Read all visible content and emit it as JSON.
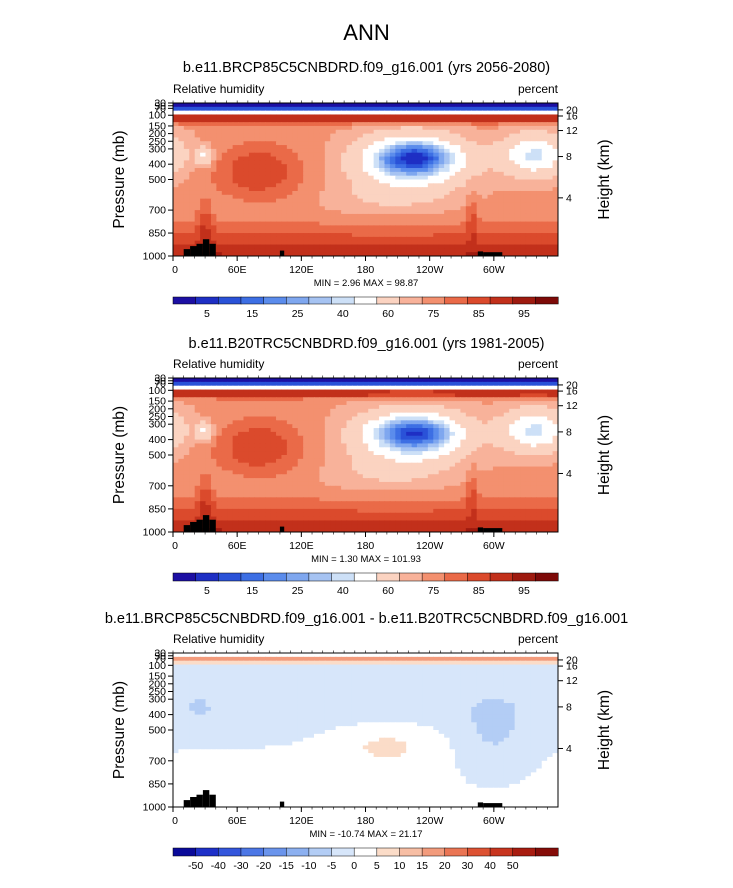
{
  "figure": {
    "title": "ANN",
    "pressure_ticks": [
      "30",
      "50",
      "70",
      "100",
      "150",
      "200",
      "250",
      "300",
      "400",
      "500",
      "700",
      "850",
      "1000"
    ],
    "height_ticks": [
      "20",
      "16",
      "12",
      "8",
      "4"
    ],
    "lon_ticks": [
      "0",
      "60E",
      "120E",
      "180",
      "120W",
      "60W"
    ]
  },
  "colors": {
    "abs_scale": [
      "#1c0fa3",
      "#1e2fc4",
      "#2a52d8",
      "#3d6fe4",
      "#5b8cec",
      "#7fa7ef",
      "#a6c3f2",
      "#cde0f7",
      "#ffffff",
      "#fbd3c1",
      "#f8b29a",
      "#f3906f",
      "#ea6a48",
      "#db4a2c",
      "#c2301b",
      "#9e1a0f",
      "#7d0a08"
    ],
    "diff_scale": [
      "#0a0a9a",
      "#1e30c8",
      "#3456dc",
      "#4c77e6",
      "#6a94ec",
      "#8cb0f0",
      "#b3cdf5",
      "#d7e6fa",
      "#ffffff",
      "#fbdcc8",
      "#f7bea4",
      "#f29b7c",
      "#ea7554",
      "#dd5233",
      "#c8351f",
      "#a81c10",
      "#850c08"
    ]
  },
  "chart_data": [
    {
      "type": "heatmap",
      "title": "b.e11.BRCP85C5CNBDRD.f09_g16.001 (yrs 2056-2080)",
      "left_label": "Relative humidity",
      "right_label": "percent",
      "xlabel": "",
      "ylabel": "Pressure (mb)",
      "ylabel_right": "Height (km)",
      "x_range": [
        0,
        360
      ],
      "y_range": [
        1000,
        30
      ],
      "stats": "MIN =   2.96  MAX =  98.87",
      "min": 2.96,
      "max": 98.87,
      "colorbar_labels": [
        "5",
        "15",
        "25",
        "40",
        "60",
        "75",
        "85",
        "95"
      ],
      "colorbar_levels": [
        5,
        10,
        15,
        20,
        25,
        30,
        35,
        40,
        50,
        60,
        65,
        70,
        75,
        80,
        85,
        90,
        95
      ]
    },
    {
      "type": "heatmap",
      "title": "b.e11.B20TRC5CNBDRD.f09_g16.001 (yrs 1981-2005)",
      "left_label": "Relative humidity",
      "right_label": "percent",
      "xlabel": "",
      "ylabel": "Pressure (mb)",
      "ylabel_right": "Height (km)",
      "x_range": [
        0,
        360
      ],
      "y_range": [
        1000,
        30
      ],
      "stats": "MIN =   1.30  MAX = 101.93",
      "min": 1.3,
      "max": 101.93,
      "colorbar_labels": [
        "5",
        "15",
        "25",
        "40",
        "60",
        "75",
        "85",
        "95"
      ],
      "colorbar_levels": [
        5,
        10,
        15,
        20,
        25,
        30,
        35,
        40,
        50,
        60,
        65,
        70,
        75,
        80,
        85,
        90,
        95
      ]
    },
    {
      "type": "heatmap",
      "title": "b.e11.BRCP85C5CNBDRD.f09_g16.001 - b.e11.B20TRC5CNBDRD.f09_g16.001",
      "left_label": "Relative humidity",
      "right_label": "percent",
      "xlabel": "",
      "ylabel": "Pressure (mb)",
      "ylabel_right": "Height (km)",
      "x_range": [
        0,
        360
      ],
      "y_range": [
        1000,
        30
      ],
      "stats": "MIN = -10.74  MAX =  21.17",
      "min": -10.74,
      "max": 21.17,
      "colorbar_labels": [
        "-50",
        "-40",
        "-30",
        "-20",
        "-15",
        "-10",
        "-5",
        "0",
        "5",
        "10",
        "15",
        "20",
        "30",
        "40",
        "50"
      ],
      "colorbar_levels": [
        -50,
        -40,
        -30,
        -20,
        -15,
        -10,
        -5,
        0,
        5,
        10,
        15,
        20,
        30,
        40,
        50
      ]
    }
  ]
}
